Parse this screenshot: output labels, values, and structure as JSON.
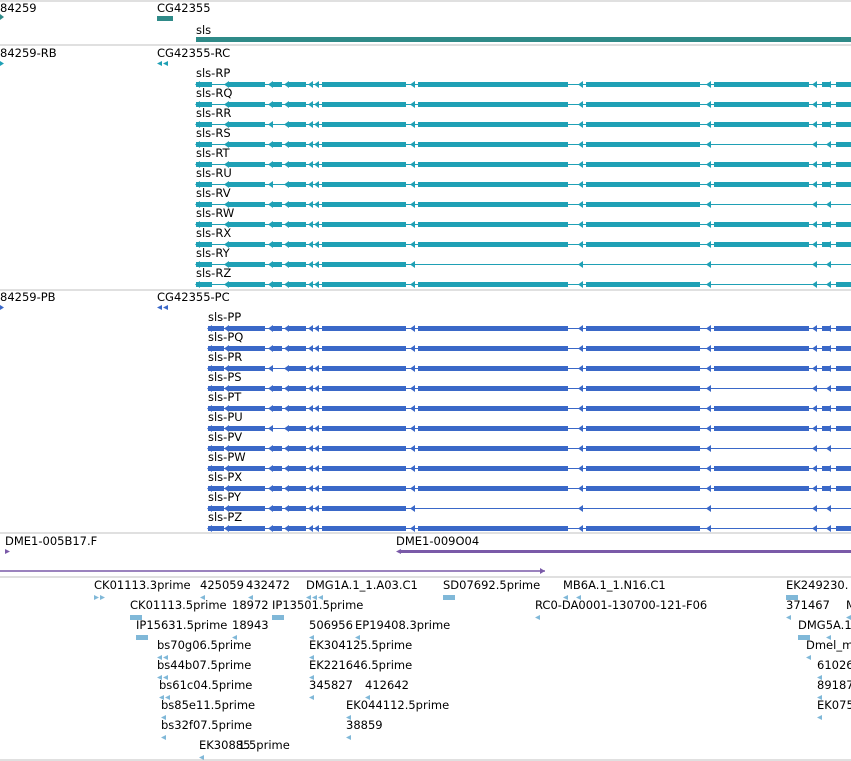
{
  "colors": {
    "background": "#ffffff",
    "divider": "#c0c0c0",
    "gene": "#2f8a88",
    "transcript_rna": "#1fa0b5",
    "transcript_protein": "#3a68c8",
    "clone": "#7a5aa8",
    "est": "#80b8d8",
    "label": "#000000"
  },
  "tracks": {
    "genes": {
      "labels": [
        "84259",
        "CG42355",
        "sls"
      ]
    },
    "rna": {
      "labels": [
        "84259-RB",
        "CG42355-RC"
      ],
      "transcripts": [
        {
          "name": "sls-RP",
          "variant": "full"
        },
        {
          "name": "sls-RQ",
          "variant": "full"
        },
        {
          "name": "sls-RR",
          "variant": "gapA"
        },
        {
          "name": "sls-RS",
          "variant": "gapB"
        },
        {
          "name": "sls-RT",
          "variant": "full"
        },
        {
          "name": "sls-RU",
          "variant": "gapA"
        },
        {
          "name": "sls-RV",
          "variant": "short"
        },
        {
          "name": "sls-RW",
          "variant": "full"
        },
        {
          "name": "sls-RX",
          "variant": "full"
        },
        {
          "name": "sls-RY",
          "variant": "tiny"
        },
        {
          "name": "sls-RZ",
          "variant": "gapB"
        }
      ]
    },
    "protein": {
      "labels": [
        "84259-PB",
        "CG42355-PC"
      ],
      "transcripts": [
        {
          "name": "sls-PP",
          "variant": "full"
        },
        {
          "name": "sls-PQ",
          "variant": "full"
        },
        {
          "name": "sls-PR",
          "variant": "gapA"
        },
        {
          "name": "sls-PS",
          "variant": "gapB"
        },
        {
          "name": "sls-PT",
          "variant": "full"
        },
        {
          "name": "sls-PU",
          "variant": "gapA"
        },
        {
          "name": "sls-PV",
          "variant": "short"
        },
        {
          "name": "sls-PW",
          "variant": "full"
        },
        {
          "name": "sls-PX",
          "variant": "full"
        },
        {
          "name": "sls-PY",
          "variant": "tiny"
        },
        {
          "name": "sls-PZ",
          "variant": "gapB"
        }
      ]
    },
    "clones": {
      "labels": [
        "DME1-005B17.F",
        "DME1-009O04"
      ]
    },
    "ests": {
      "labels": [
        "CK01113.3prime",
        "425059",
        "432472",
        "DMG1A.1_1.A03.C1",
        "SD07692.5prime",
        "MB6A.1_1.N16.C1",
        "EK249230.",
        "CK01113.5prime",
        "18972",
        "IP13501.5prime",
        "RC0-DA0001-130700-121-F06",
        "371467",
        "M",
        "IP15631.5prime",
        "18943",
        "506956",
        "EP19408.3prime",
        "DMG5A.1",
        "bs70g06.5prime",
        "EK304125.5prime",
        "Dmel_m",
        "bs44b07.5prime",
        "EK221646.5prime",
        "61026",
        "bs61c04.5prime",
        "345827",
        "412642",
        "89187",
        "bs85e11.5prime",
        "EK044112.5prime",
        "EK075",
        "bs32f07.5prime",
        "38859",
        "EK30885",
        "1.5prime"
      ]
    }
  }
}
